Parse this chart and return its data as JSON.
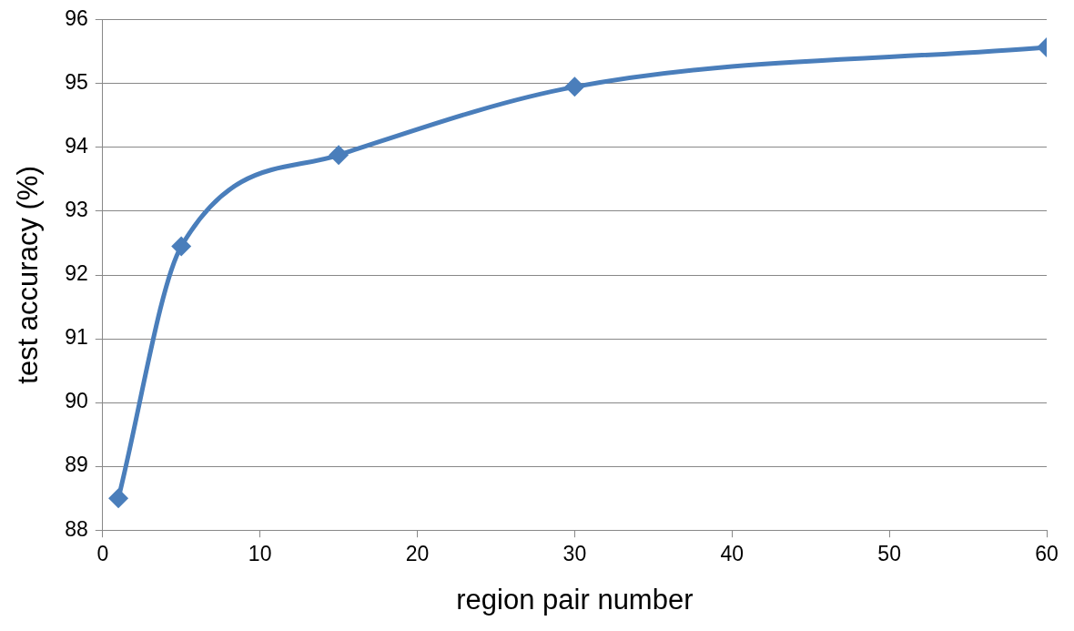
{
  "chart_data": {
    "type": "line",
    "xlabel": "region pair number",
    "ylabel": "test accuracy (%)",
    "x": [
      1,
      5,
      15,
      30,
      60
    ],
    "series": [
      {
        "color": "#4a7ebb",
        "values": [
          88.5,
          92.45,
          93.88,
          94.95,
          95.57
        ]
      }
    ],
    "xlim": [
      0,
      60
    ],
    "xticks": [
      0,
      10,
      20,
      30,
      40,
      50,
      60
    ],
    "ylim": [
      88,
      96
    ],
    "yticks": [
      88,
      89,
      90,
      91,
      92,
      93,
      94,
      95,
      96
    ],
    "grid": "y",
    "legend": false,
    "marker": "diamond",
    "line_style": "solid"
  }
}
